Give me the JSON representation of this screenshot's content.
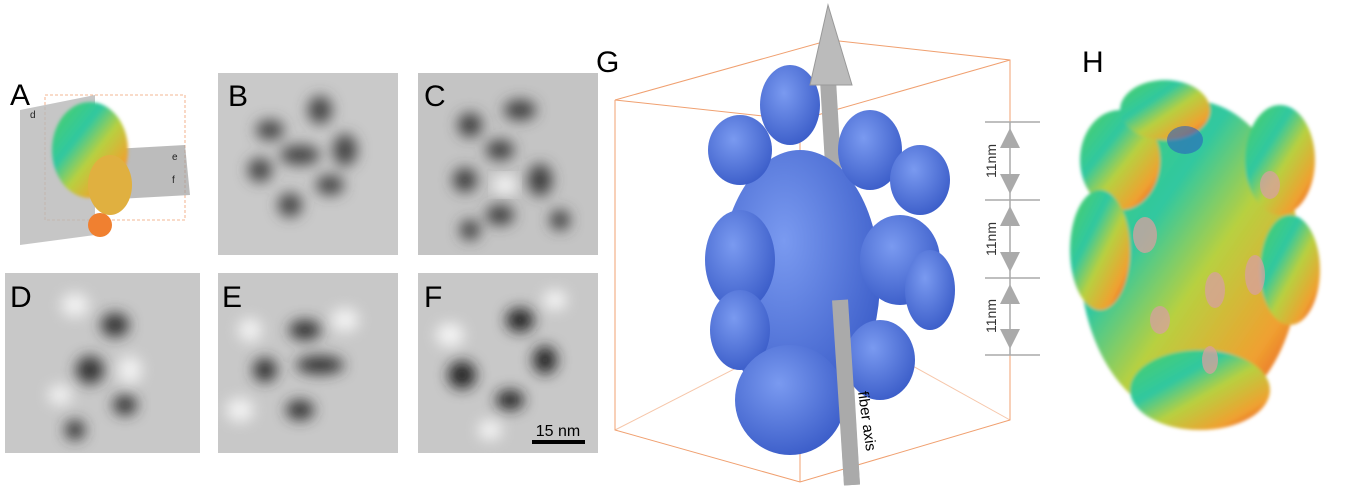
{
  "panels": [
    {
      "label": "A",
      "annotations": [
        "d",
        "e",
        "f"
      ]
    },
    {
      "label": "B"
    },
    {
      "label": "C"
    },
    {
      "label": "D"
    },
    {
      "label": "E"
    },
    {
      "label": "F",
      "scale_bar": "15 nm"
    },
    {
      "label": "G",
      "dimensions": [
        "11nm",
        "11nm",
        "11nm"
      ],
      "axis_label": "fiber axis"
    },
    {
      "label": "H"
    }
  ]
}
